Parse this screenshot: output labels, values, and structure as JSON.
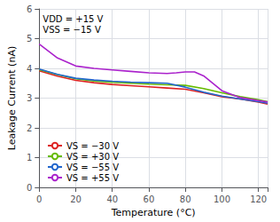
{
  "chart_data": {
    "type": "line",
    "x_label": "Temperature (°C)",
    "y_label": "Leakage Current (nA)",
    "xlim": [
      0,
      125
    ],
    "ylim": [
      0,
      6
    ],
    "xticks": [
      0,
      20,
      40,
      60,
      80,
      100,
      120
    ],
    "yticks": [
      0,
      1,
      2,
      3,
      4,
      5,
      6
    ],
    "grid": true,
    "legend": "lower left",
    "series": [
      {
        "name": "VS = −30 V",
        "color": "#dd2222",
        "x": [
          0,
          10,
          20,
          30,
          40,
          50,
          60,
          70,
          80,
          90,
          100,
          110,
          120,
          125
        ],
        "values": [
          3.92,
          3.74,
          3.6,
          3.52,
          3.46,
          3.42,
          3.38,
          3.34,
          3.3,
          3.18,
          3.05,
          2.97,
          2.87,
          2.8
        ]
      },
      {
        "name": "VS = +30 V",
        "color": "#66bb00",
        "x": [
          0,
          10,
          20,
          30,
          40,
          50,
          60,
          70,
          80,
          90,
          100,
          110,
          120,
          125
        ],
        "values": [
          3.96,
          3.79,
          3.65,
          3.58,
          3.53,
          3.5,
          3.47,
          3.45,
          3.43,
          3.32,
          3.18,
          3.05,
          2.95,
          2.88
        ]
      },
      {
        "name": "VS = −55 V",
        "color": "#2266cc",
        "x": [
          0,
          10,
          20,
          30,
          40,
          50,
          60,
          70,
          80,
          90,
          100,
          110,
          120,
          125
        ],
        "values": [
          3.98,
          3.8,
          3.67,
          3.61,
          3.57,
          3.54,
          3.52,
          3.5,
          3.37,
          3.2,
          3.07,
          2.97,
          2.88,
          2.83
        ]
      },
      {
        "name": "VS = +55 V",
        "color": "#aa22cc",
        "x": [
          0,
          10,
          20,
          30,
          40,
          50,
          60,
          70,
          75,
          80,
          85,
          90,
          100,
          110,
          120,
          125
        ],
        "values": [
          4.82,
          4.35,
          4.08,
          4.0,
          3.95,
          3.9,
          3.85,
          3.83,
          3.85,
          3.88,
          3.88,
          3.75,
          3.25,
          3.02,
          2.92,
          2.87
        ]
      }
    ],
    "annotations": [
      {
        "text": "VDD = +15 V\nVSS = −15 V",
        "x": 1,
        "y": 5.85
      }
    ]
  }
}
